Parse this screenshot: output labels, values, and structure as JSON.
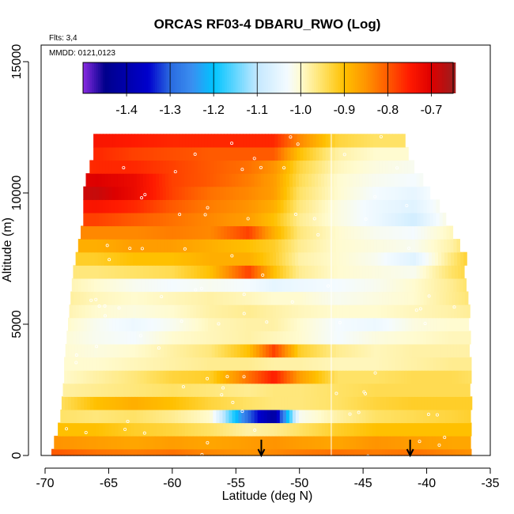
{
  "chart_data": {
    "type": "heatmap",
    "title": "ORCAS RF03-4 DBARU_RWO (Log)",
    "subtitle_flights": "Flts: 3,4",
    "subtitle_dates": "MMDD: 0121,0123",
    "xlabel": "Latitude (deg N)",
    "ylabel": "Altitude (m)",
    "xlim": [
      -70,
      -35
    ],
    "ylim": [
      0,
      15000
    ],
    "x_ticks": [
      "-70",
      "-65",
      "-60",
      "-55",
      "-50",
      "-45",
      "-40",
      "-35"
    ],
    "x_tick_values": [
      -70,
      -65,
      -60,
      -55,
      -50,
      -45,
      -40,
      -35
    ],
    "y_ticks": [
      "0",
      "5000",
      "10000",
      "15000"
    ],
    "y_tick_values": [
      0,
      5000,
      10000,
      15000
    ],
    "colorbar": {
      "range": [
        -1.5,
        -0.65
      ],
      "ticks": [
        "-1.4",
        "-1.3",
        "-1.2",
        "-1.1",
        "-1.0",
        "-0.9",
        "-0.8",
        "-0.7"
      ],
      "tick_values": [
        -1.4,
        -1.3,
        -1.2,
        -1.1,
        -1.0,
        -0.9,
        -0.8,
        -0.7
      ],
      "stops": [
        [
          -1.5,
          "#8a2be2"
        ],
        [
          -1.45,
          "#00008b"
        ],
        [
          -1.35,
          "#0000cd"
        ],
        [
          -1.3,
          "#2a6ae0"
        ],
        [
          -1.25,
          "#3a8ef0"
        ],
        [
          -1.2,
          "#00c4ff"
        ],
        [
          -1.1,
          "#c4e8ff"
        ],
        [
          -1.03,
          "#f4fbff"
        ],
        [
          -1.0,
          "#fffbd0"
        ],
        [
          -0.95,
          "#ffe266"
        ],
        [
          -0.9,
          "#ffc000"
        ],
        [
          -0.85,
          "#ff9400"
        ],
        [
          -0.8,
          "#ff5a00"
        ],
        [
          -0.75,
          "#ff1a00"
        ],
        [
          -0.7,
          "#dd0000"
        ],
        [
          -0.65,
          "#a01c1c"
        ]
      ]
    },
    "lat_nodes": [
      -69,
      -66,
      -63,
      -60,
      -57,
      -54,
      -52,
      -50,
      -47,
      -44,
      -41,
      -38,
      -36
    ],
    "rows": [
      {
        "alt": 0,
        "lat_min": -69.5,
        "lat_max": -36.6,
        "values": [
          -0.8,
          -0.82,
          -0.83,
          -0.82,
          -0.84,
          -0.85,
          -0.84,
          -0.83,
          -0.82,
          -0.83,
          -0.82,
          -0.84,
          -0.85
        ]
      },
      {
        "alt": 500,
        "lat_min": -69.3,
        "lat_max": -36.6,
        "values": [
          -0.85,
          -0.86,
          -0.87,
          -0.86,
          -0.87,
          -0.86,
          -0.85,
          -0.86,
          -0.87,
          -0.85,
          -0.86,
          -0.87,
          -0.87
        ]
      },
      {
        "alt": 1000,
        "lat_min": -69.0,
        "lat_max": -36.6,
        "values": [
          -0.9,
          -0.9,
          -0.92,
          -0.93,
          -0.95,
          -0.98,
          -0.97,
          -0.95,
          -0.92,
          -0.9,
          -0.9,
          -0.9,
          -0.9
        ]
      },
      {
        "alt": 1500,
        "lat_min": -68.8,
        "lat_max": -36.6,
        "values": [
          -0.95,
          -0.96,
          -0.95,
          -0.97,
          -1.0,
          -1.3,
          -1.42,
          -1.02,
          -0.98,
          -0.95,
          -0.94,
          -0.93,
          -0.92
        ]
      },
      {
        "alt": 2000,
        "lat_min": -68.7,
        "lat_max": -36.6,
        "values": [
          -0.95,
          -0.9,
          -0.88,
          -0.9,
          -0.93,
          -0.95,
          -0.96,
          -0.96,
          -0.95,
          -0.93,
          -0.92,
          -0.92,
          -0.92
        ]
      },
      {
        "alt": 2500,
        "lat_min": -68.6,
        "lat_max": -36.6,
        "values": [
          -0.98,
          -0.97,
          -0.96,
          -0.95,
          -0.96,
          -0.97,
          -0.96,
          -0.96,
          -0.95,
          -0.94,
          -0.94,
          -0.94,
          -0.94
        ]
      },
      {
        "alt": 3000,
        "lat_min": -68.5,
        "lat_max": -36.6,
        "values": [
          -1.0,
          -0.98,
          -0.96,
          -0.93,
          -0.92,
          -0.82,
          -0.75,
          -0.86,
          -0.95,
          -0.95,
          -0.94,
          -0.94,
          -0.95
        ]
      },
      {
        "alt": 3500,
        "lat_min": -68.5,
        "lat_max": -36.6,
        "values": [
          -1.0,
          -1.0,
          -0.99,
          -0.98,
          -0.97,
          -0.97,
          -0.98,
          -0.98,
          -0.99,
          -0.99,
          -0.98,
          -0.97,
          -0.97
        ]
      },
      {
        "alt": 4000,
        "lat_min": -68.4,
        "lat_max": -36.7,
        "values": [
          -1.0,
          -1.01,
          -1.0,
          -0.98,
          -0.96,
          -0.9,
          -0.78,
          -0.92,
          -0.97,
          -0.99,
          -0.98,
          -0.98,
          -0.98
        ]
      },
      {
        "alt": 4500,
        "lat_min": -68.3,
        "lat_max": -36.7,
        "values": [
          -1.0,
          -1.02,
          -1.03,
          -1.0,
          -0.99,
          -0.98,
          -0.99,
          -1.0,
          -1.03,
          -1.01,
          -1.0,
          -0.99,
          -0.99
        ]
      },
      {
        "alt": 5000,
        "lat_min": -68.2,
        "lat_max": -36.8,
        "values": [
          -0.99,
          -1.02,
          -1.04,
          -1.02,
          -0.99,
          -0.98,
          -0.98,
          -1.0,
          -1.03,
          -1.04,
          -1.01,
          -1.0,
          -1.0
        ]
      },
      {
        "alt": 5500,
        "lat_min": -68.1,
        "lat_max": -36.8,
        "values": [
          -0.98,
          -1.0,
          -1.01,
          -1.0,
          -0.98,
          -0.97,
          -0.98,
          -0.99,
          -1.0,
          -1.0,
          -0.99,
          -0.98,
          -0.97
        ]
      },
      {
        "alt": 6000,
        "lat_min": -68.0,
        "lat_max": -36.9,
        "values": [
          -0.97,
          -0.99,
          -1.0,
          -0.99,
          -0.98,
          -0.99,
          -1.0,
          -1.0,
          -1.02,
          -1.01,
          -1.0,
          -0.97,
          -0.95
        ]
      },
      {
        "alt": 6500,
        "lat_min": -67.9,
        "lat_max": -37.0,
        "values": [
          -0.98,
          -1.0,
          -1.02,
          -1.03,
          -1.02,
          -1.03,
          -1.05,
          -1.04,
          -1.03,
          -1.02,
          -1.0,
          -0.97,
          -0.94
        ]
      },
      {
        "alt": 7000,
        "lat_min": -67.8,
        "lat_max": -37.2,
        "values": [
          -0.96,
          -0.96,
          -0.95,
          -0.94,
          -0.9,
          -0.78,
          -0.9,
          -0.97,
          -1.0,
          -1.01,
          -1.02,
          -0.95,
          -0.92
        ]
      },
      {
        "alt": 7500,
        "lat_min": -67.6,
        "lat_max": -37.0,
        "values": [
          -0.92,
          -0.92,
          -0.9,
          -0.9,
          -0.88,
          -0.88,
          -0.92,
          -0.98,
          -1.0,
          -1.02,
          -1.06,
          -0.96,
          -0.9
        ]
      },
      {
        "alt": 8000,
        "lat_min": -67.4,
        "lat_max": -37.5,
        "values": [
          -0.88,
          -0.88,
          -0.86,
          -0.86,
          -0.88,
          -0.9,
          -0.92,
          -0.97,
          -1.0,
          -1.01,
          -1.02,
          -0.98,
          -0.92
        ]
      },
      {
        "alt": 8500,
        "lat_min": -67.2,
        "lat_max": -38.0,
        "values": [
          -0.84,
          -0.84,
          -0.84,
          -0.83,
          -0.84,
          -0.78,
          -0.88,
          -0.96,
          -1.0,
          -1.02,
          -1.03,
          -0.99,
          -0.95
        ]
      },
      {
        "alt": 9000,
        "lat_min": -67.0,
        "lat_max": -38.6,
        "values": [
          -0.78,
          -0.78,
          -0.8,
          -0.82,
          -0.84,
          -0.86,
          -0.9,
          -0.97,
          -1.01,
          -1.04,
          -1.08,
          -1.0,
          -0.96
        ]
      },
      {
        "alt": 9500,
        "lat_min": -67.0,
        "lat_max": -39.2,
        "values": [
          -0.75,
          -0.74,
          -0.76,
          -0.8,
          -0.83,
          -0.85,
          -0.88,
          -0.96,
          -1.01,
          -1.04,
          -1.06,
          -1.0,
          -0.96
        ]
      },
      {
        "alt": 10000,
        "lat_min": -67.0,
        "lat_max": -39.8,
        "values": [
          -0.7,
          -0.68,
          -0.72,
          -0.78,
          -0.82,
          -0.84,
          -0.86,
          -0.95,
          -1.0,
          -1.03,
          -1.05,
          -1.0,
          -0.96
        ]
      },
      {
        "alt": 10500,
        "lat_min": -66.8,
        "lat_max": -40.4,
        "values": [
          -0.72,
          -0.7,
          -0.72,
          -0.78,
          -0.8,
          -0.83,
          -0.86,
          -0.94,
          -1.0,
          -1.02,
          -1.03,
          -1.0,
          -0.96
        ]
      },
      {
        "alt": 11000,
        "lat_min": -66.5,
        "lat_max": -41.0,
        "values": [
          -0.78,
          -0.76,
          -0.76,
          -0.78,
          -0.8,
          -0.82,
          -0.85,
          -0.93,
          -0.99,
          -1.01,
          -1.02,
          -1.0,
          -0.96
        ]
      },
      {
        "alt": 11500,
        "lat_min": -66.2,
        "lat_max": -41.6,
        "values": [
          -0.76,
          -0.76,
          -0.78,
          -0.79,
          -0.8,
          -0.8,
          -0.8,
          -0.9,
          -0.98,
          -1.0,
          -1.0,
          -0.98,
          -0.96
        ]
      },
      {
        "alt": 12000,
        "lat_min": -66.2,
        "lat_max": -41.8,
        "values": [
          -0.74,
          -0.74,
          -0.75,
          -0.76,
          -0.76,
          -0.76,
          -0.76,
          -0.84,
          -0.93,
          -0.95,
          -0.95,
          -0.95,
          -0.95
        ]
      }
    ],
    "flight_boundary_lat": -47.5,
    "arrow_markers_lat": [
      -53.0,
      -41.3
    ]
  }
}
